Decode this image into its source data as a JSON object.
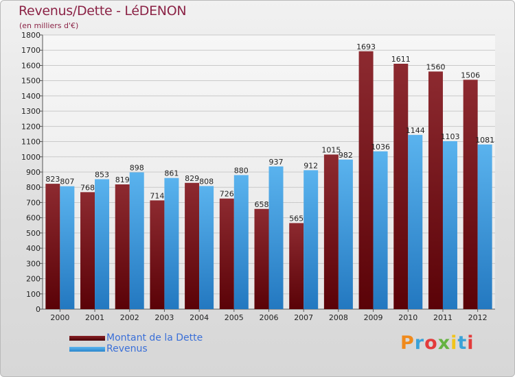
{
  "header": {
    "title": "Revenus/Dette - LéDENON",
    "subtitle": "(en milliers d'€)"
  },
  "logo": {
    "text": "Proxiti",
    "colors": [
      "#f08a1c",
      "#3aa2d8",
      "#e33b3b",
      "#65b342",
      "#f2c41a",
      "#3aa2d8",
      "#e33b3b"
    ]
  },
  "colors": {
    "dette": "#6e0f14",
    "revenus": "#3f9fe2",
    "title": "#8b2346",
    "legend_text": "#3a6fd8"
  },
  "chart_data": {
    "type": "bar",
    "title": "Revenus/Dette - LéDENON",
    "subtitle": "(en milliers d'€)",
    "categories": [
      "2000",
      "2001",
      "2002",
      "2003",
      "2004",
      "2005",
      "2006",
      "2007",
      "2008",
      "2009",
      "2010",
      "2011",
      "2012"
    ],
    "series": [
      {
        "name": "Montant de la Dette",
        "values": [
          823,
          768,
          819,
          714,
          829,
          726,
          658,
          565,
          1015,
          1693,
          1611,
          1560,
          1506
        ]
      },
      {
        "name": "Revenus",
        "values": [
          807,
          853,
          898,
          861,
          808,
          880,
          937,
          912,
          982,
          1036,
          1144,
          1103,
          1081
        ]
      }
    ],
    "ylim": [
      0,
      1800
    ],
    "ytick_step": 100,
    "grid": true,
    "legend_placement": "bottom-left"
  }
}
